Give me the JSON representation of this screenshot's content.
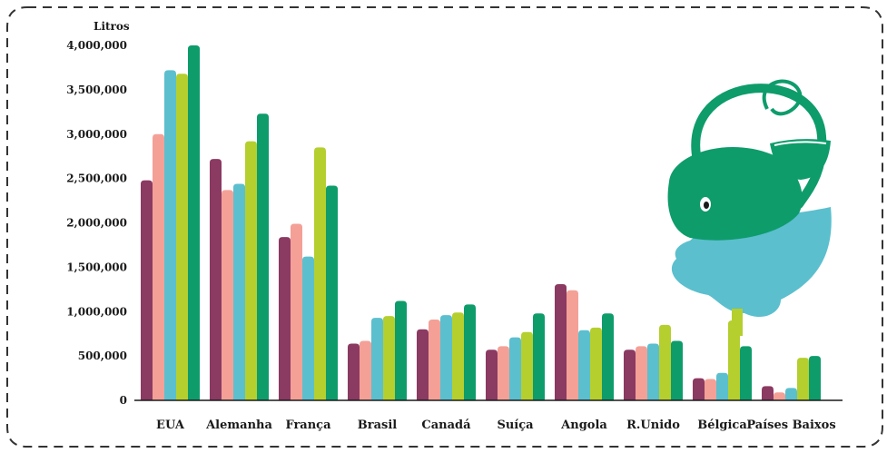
{
  "chart_data": {
    "type": "bar",
    "ylabel": "Litros",
    "ylim": [
      0,
      4000000
    ],
    "yticks": [
      0,
      500000,
      1000000,
      1500000,
      2000000,
      2500000,
      3000000,
      3500000,
      4000000
    ],
    "ytick_labels": [
      "0",
      "500,000",
      "1,000,000",
      "1,500,000",
      "2,000,000",
      "2,500,000",
      "3,000,000",
      "3,500,000",
      "4,000,000"
    ],
    "categories": [
      "EUA",
      "Alemanha",
      "França",
      "Brasil",
      "Canadá",
      "Suíça",
      "Angola",
      "R.Unido",
      "Bélgica",
      "Países Baixos"
    ],
    "grid": false,
    "legend": "none",
    "series": [
      {
        "color": "#8b3a62",
        "values": [
          2480000,
          2720000,
          1840000,
          640000,
          800000,
          570000,
          1310000,
          570000,
          250000,
          160000
        ]
      },
      {
        "color": "#f4a097",
        "values": [
          3000000,
          2370000,
          1990000,
          670000,
          910000,
          610000,
          1240000,
          610000,
          240000,
          90000
        ]
      },
      {
        "color": "#5bbfce",
        "values": [
          3720000,
          2440000,
          1620000,
          930000,
          960000,
          710000,
          790000,
          640000,
          310000,
          140000
        ]
      },
      {
        "color": "#b5cf2e",
        "values": [
          3680000,
          2920000,
          2850000,
          950000,
          990000,
          770000,
          820000,
          850000,
          900000,
          480000
        ]
      },
      {
        "color": "#0e9c6b",
        "values": [
          4000000,
          3230000,
          2420000,
          1120000,
          1080000,
          980000,
          980000,
          670000,
          610000,
          500000
        ]
      }
    ],
    "colors": {
      "frame": "#333333",
      "axis": "#1a1a1a",
      "mascot_green": "#0e9c6b",
      "mascot_blue": "#5bbfce"
    }
  },
  "mascot": {
    "icon": "whale-mascot-icon"
  }
}
